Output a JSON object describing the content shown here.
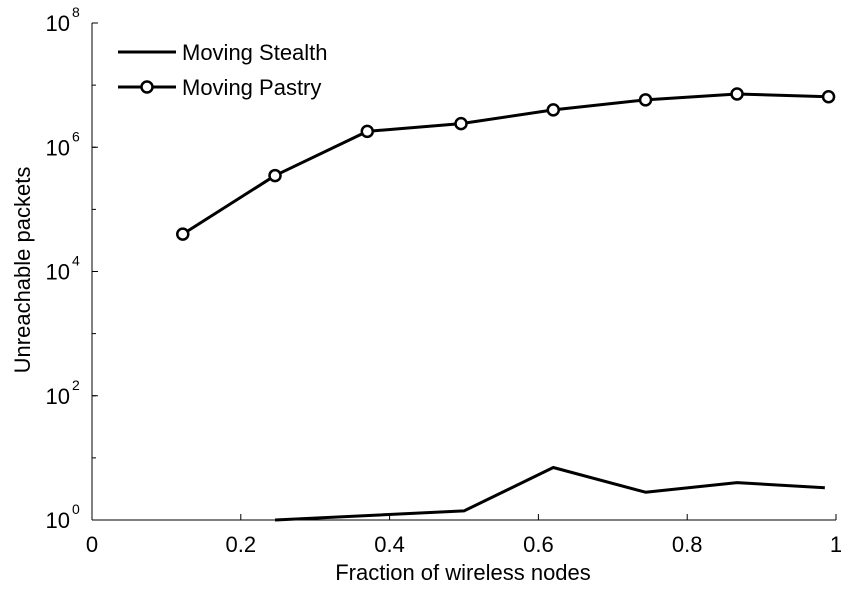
{
  "chart_data": {
    "type": "line",
    "xlabel": "Fraction of wireless nodes",
    "ylabel": "Unreachable packets",
    "xlim": [
      0,
      1
    ],
    "ylim_log10": [
      0,
      8
    ],
    "y_scale": "log",
    "x_ticks": [
      0,
      0.2,
      0.4,
      0.6,
      0.8,
      1
    ],
    "x_tick_labels": [
      "0",
      "0.2",
      "0.4",
      "0.6",
      "0.8",
      "1"
    ],
    "y_ticks_log10": [
      0,
      2,
      4,
      6,
      8
    ],
    "y_tick_base": "10",
    "y_tick_exponents": [
      "0",
      "2",
      "4",
      "6",
      "8"
    ],
    "legend_position": "top-left",
    "grid": false,
    "series": [
      {
        "name": "Moving Stealth",
        "marker": "none",
        "color": "#000000",
        "x": [
          0.246,
          0.5,
          0.62,
          0.744,
          0.867,
          0.985
        ],
        "y": [
          1,
          1.4,
          7,
          2.8,
          4,
          3.3
        ]
      },
      {
        "name": "Moving Pastry",
        "marker": "circle",
        "color": "#000000",
        "x": [
          0.122,
          0.246,
          0.37,
          0.496,
          0.62,
          0.744,
          0.867,
          0.99
        ],
        "y": [
          40000,
          350000,
          1800000,
          2400000,
          4000000,
          5800000,
          7200000,
          6500000
        ]
      }
    ]
  }
}
